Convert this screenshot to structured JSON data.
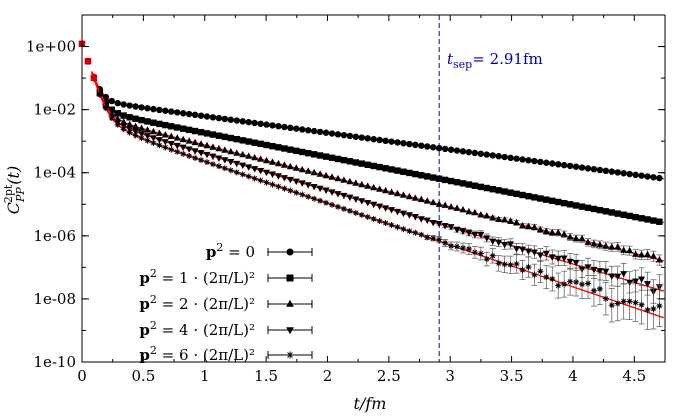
{
  "chart_data": {
    "type": "scatter",
    "title": "",
    "xlabel": "t/fm",
    "ylabel": "C_PP^2pt(t)",
    "ylabel_main": "C",
    "ylabel_sub": "PP",
    "ylabel_sup": "2pt",
    "ylabel_arg": "(t)",
    "xlim": [
      0,
      4.75
    ],
    "ylim": [
      1e-10,
      10
    ],
    "yscale": "log",
    "grid": false,
    "legend_position": "bottom-left",
    "x_ticks": [
      0,
      0.5,
      1,
      1.5,
      2,
      2.5,
      3,
      3.5,
      4,
      4.5
    ],
    "x_tick_labels": [
      "0",
      "0.5",
      "1",
      "1.5",
      "2",
      "2.5",
      "3",
      "3.5",
      "4",
      "4.5"
    ],
    "y_ticks": [
      1e-10,
      1e-08,
      1e-06,
      0.0001,
      0.01,
      1
    ],
    "y_tick_labels": [
      "1e-10",
      "1e-08",
      "1e-06",
      "1e-04",
      "1e-02",
      "1e+00"
    ],
    "annotation": {
      "text": "t_sep = 2.91fm",
      "label_sep": "sep",
      "label_value": "= 2.91fm",
      "x": 2.91,
      "color": "#0000aa"
    },
    "fit_color": "#ff0000",
    "series": [
      {
        "name": "p² = 0",
        "label_lhs": "p",
        "label_rhs": " = 0",
        "marker": "circle",
        "amp": 0.021,
        "mass": 1.22,
        "x_max": 4.72,
        "noise": 0
      },
      {
        "name": "p² = 1 · (2π/L)²",
        "label_lhs": "p",
        "label_rhs": " = 1 · (2π/L)²",
        "marker": "square",
        "amp": 0.0105,
        "mass": 1.75,
        "x_max": 4.72,
        "noise": 0
      },
      {
        "name": "p² = 2 · (2π/L)²",
        "label_lhs": "p",
        "label_rhs": " = 2 · (2π/L)²",
        "marker": "triangle-up",
        "amp": 0.0072,
        "mass": 2.26,
        "x_max": 4.72,
        "noise": 0.15
      },
      {
        "name": "p² = 4 · (2π/L)²",
        "label_lhs": "p",
        "label_rhs": " = 4 · (2π/L)²",
        "marker": "triangle-down",
        "amp": 0.0058,
        "mass": 2.68,
        "x_max": 4.72,
        "noise": 0.35
      },
      {
        "name": "p² = 6 · (2π/L)²",
        "label_lhs": "p",
        "label_rhs": " = 6 · (2π/L)²",
        "marker": "star",
        "amp": 0.0048,
        "mass": 3.05,
        "x_max": 4.72,
        "noise": 0.6
      }
    ]
  }
}
